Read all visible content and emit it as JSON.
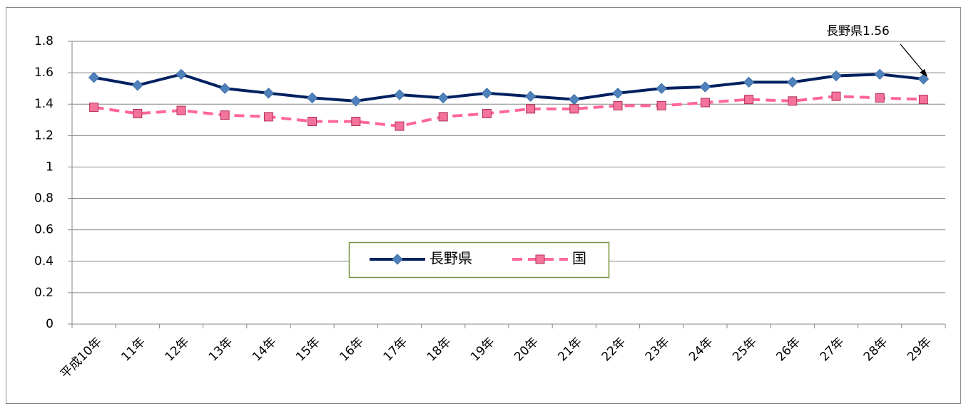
{
  "chart_data": {
    "type": "line",
    "categories": [
      "平成10年",
      "11年",
      "12年",
      "13年",
      "14年",
      "15年",
      "16年",
      "17年",
      "18年",
      "19年",
      "20年",
      "21年",
      "22年",
      "23年",
      "24年",
      "25年",
      "26年",
      "27年",
      "28年",
      "29年"
    ],
    "series": [
      {
        "name": "長野県",
        "color": "#002060",
        "marker_color": "#4f81bd",
        "marker": "diamond",
        "dash": false,
        "values": [
          1.57,
          1.52,
          1.59,
          1.5,
          1.47,
          1.44,
          1.42,
          1.46,
          1.44,
          1.47,
          1.45,
          1.43,
          1.47,
          1.5,
          1.51,
          1.54,
          1.54,
          1.58,
          1.59,
          1.56
        ]
      },
      {
        "name": "国",
        "color": "#ff6699",
        "marker_color": "#f4739b",
        "marker": "square",
        "dash": true,
        "values": [
          1.38,
          1.34,
          1.36,
          1.33,
          1.32,
          1.29,
          1.29,
          1.26,
          1.32,
          1.34,
          1.37,
          1.37,
          1.39,
          1.39,
          1.41,
          1.43,
          1.42,
          1.45,
          1.44,
          1.43
        ]
      }
    ],
    "ylim": [
      0,
      1.8
    ],
    "yticks": [
      0,
      0.2,
      0.4,
      0.6,
      0.8,
      1,
      1.2,
      1.4,
      1.6,
      1.8
    ],
    "grid": true,
    "annotation": "長野県1.56"
  }
}
